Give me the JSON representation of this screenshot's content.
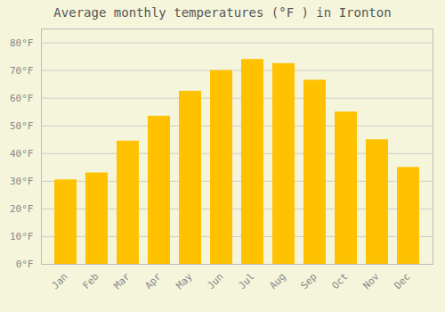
{
  "chart_data": {
    "type": "bar",
    "title": "Average monthly temperatures (°F ) in Ironton",
    "categories": [
      "Jan",
      "Feb",
      "Mar",
      "Apr",
      "May",
      "Jun",
      "Jul",
      "Aug",
      "Sep",
      "Oct",
      "Nov",
      "Dec"
    ],
    "values": [
      30.5,
      33.0,
      44.5,
      53.5,
      62.5,
      70.0,
      74.0,
      72.5,
      66.5,
      55.0,
      45.0,
      35.0
    ],
    "color": "#FFC200",
    "ylim": [
      0,
      85
    ],
    "yticks": [
      {
        "value": 0,
        "label": "0°F"
      },
      {
        "value": 10,
        "label": "10°F"
      },
      {
        "value": 20,
        "label": "20°F"
      },
      {
        "value": 30,
        "label": "30°F"
      },
      {
        "value": 40,
        "label": "40°F"
      },
      {
        "value": 50,
        "label": "50°F"
      },
      {
        "value": 60,
        "label": "60°F"
      },
      {
        "value": 70,
        "label": "70°F"
      },
      {
        "value": 80,
        "label": "80°F"
      }
    ],
    "grid": true
  }
}
